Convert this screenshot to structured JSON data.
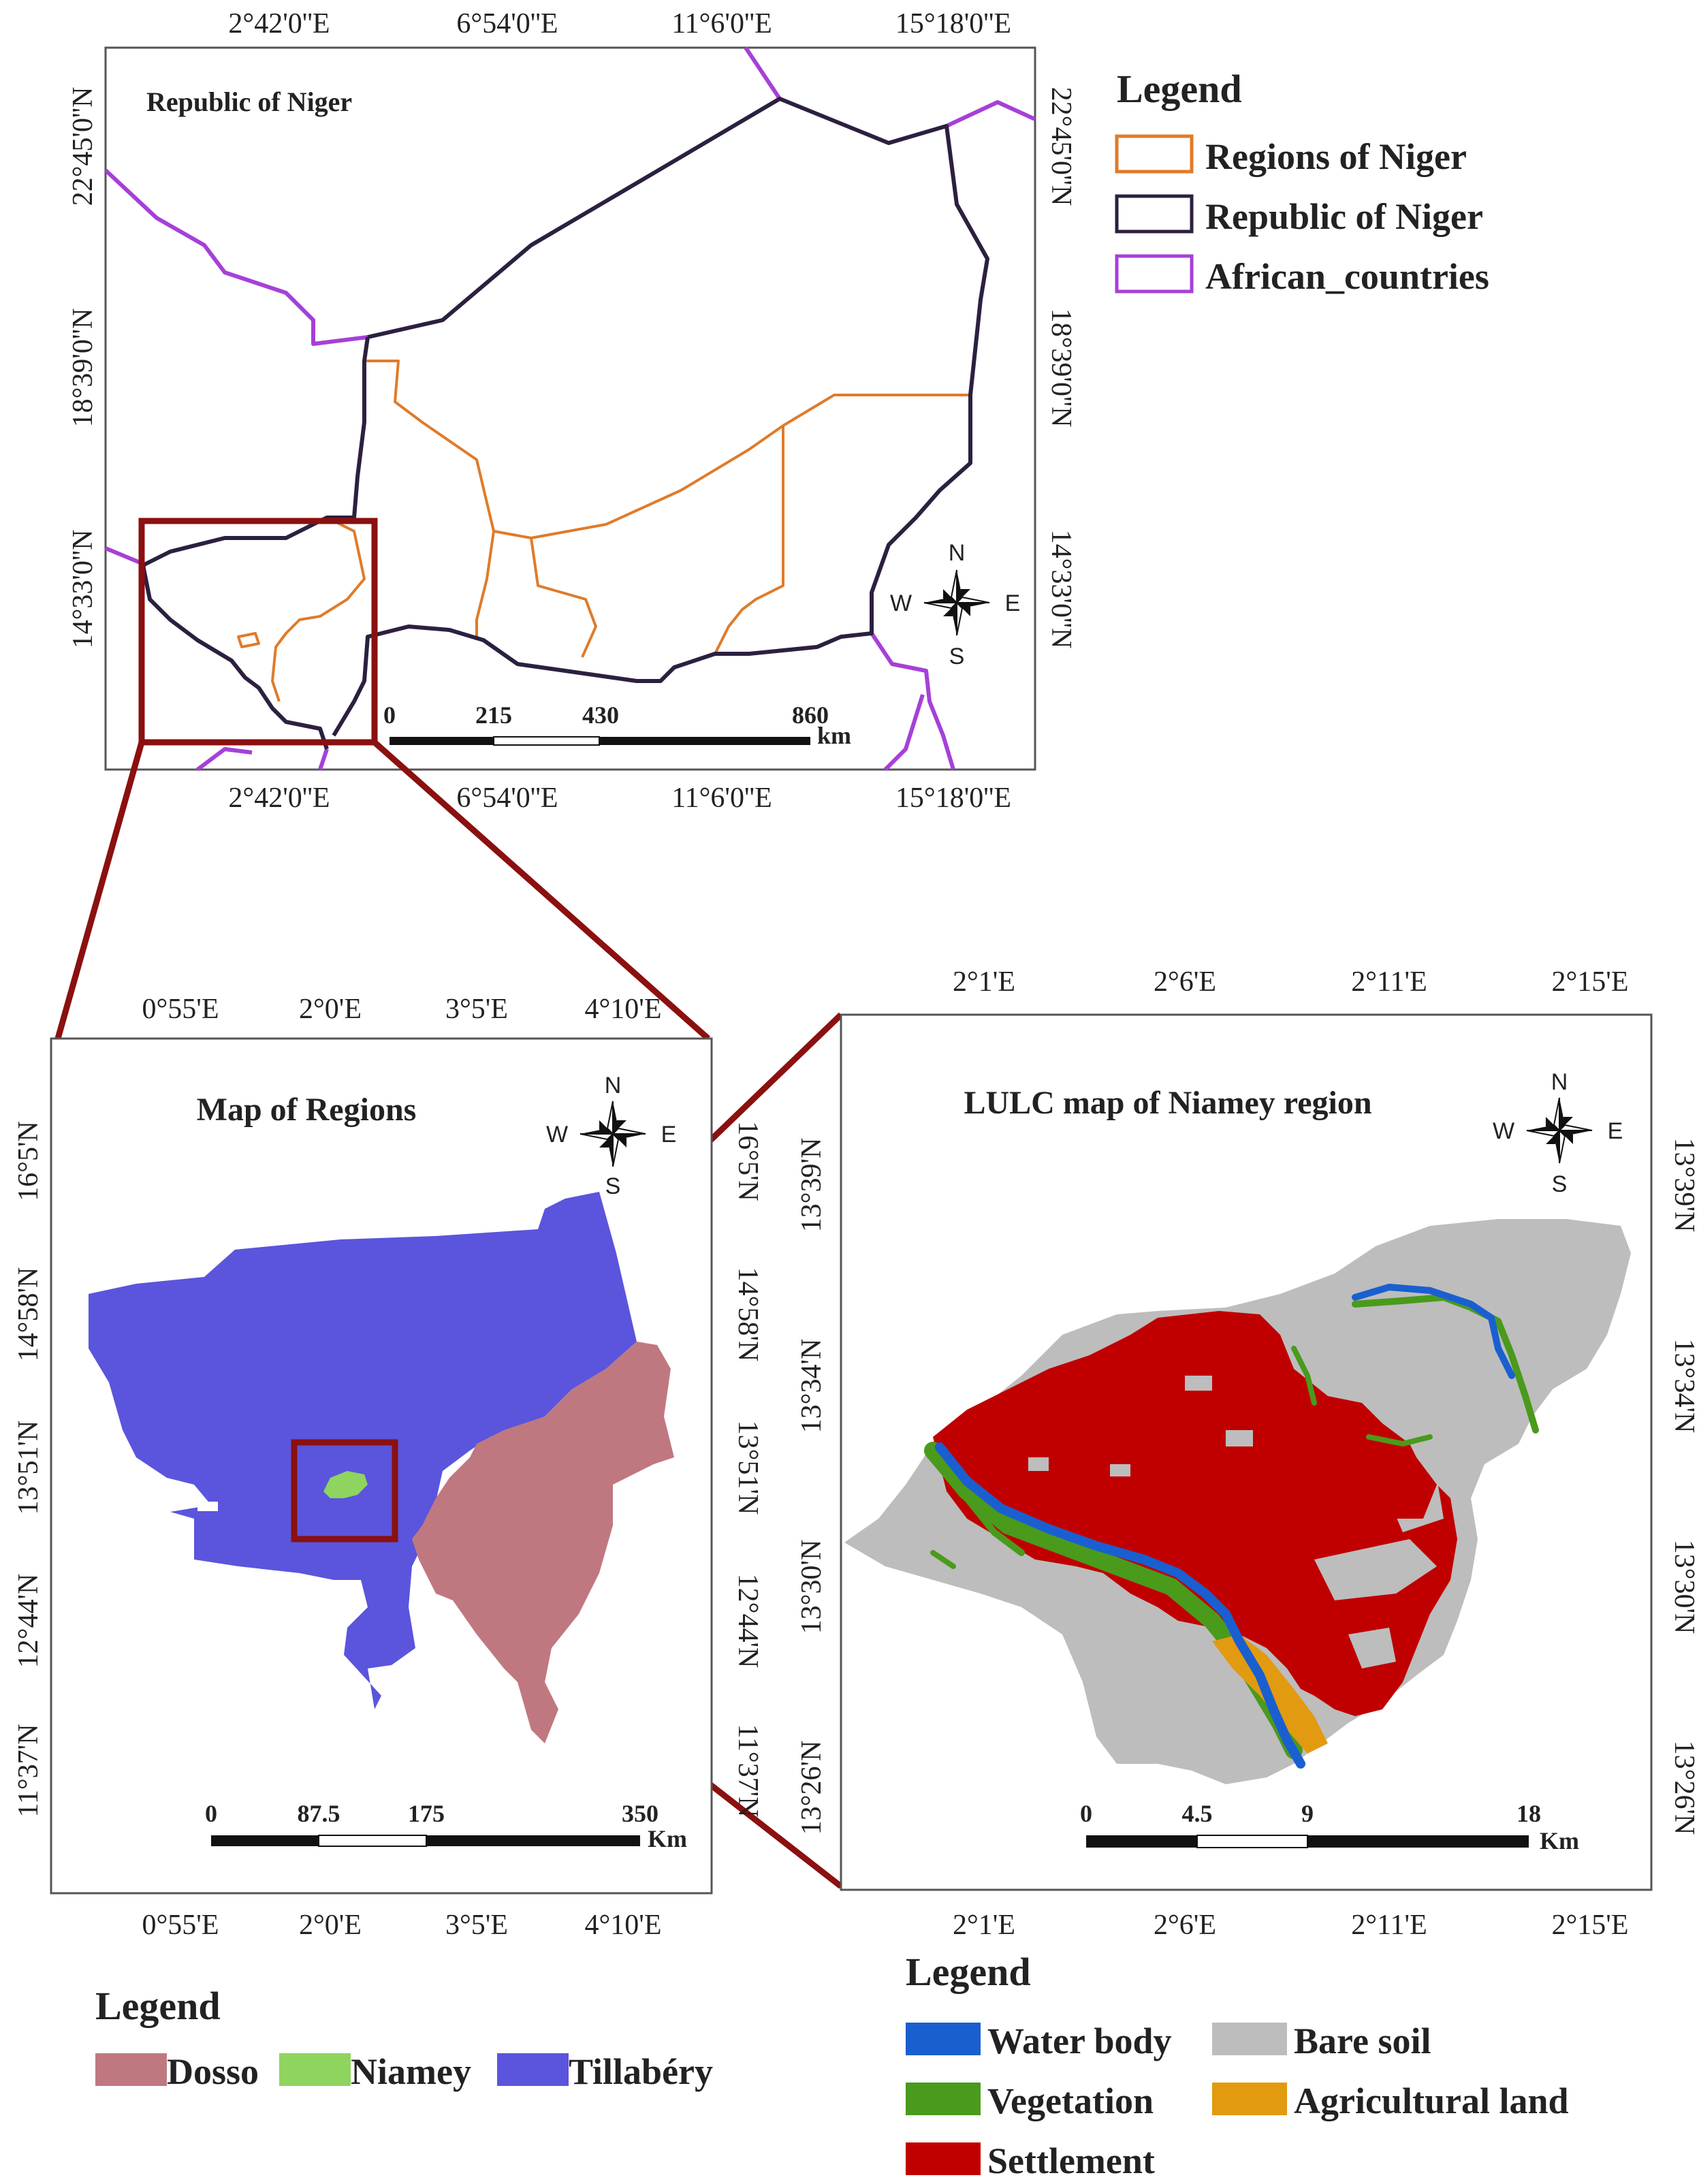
{
  "top_map": {
    "label": "Republic of Niger",
    "x_ticks": [
      "2°42'0''E",
      "6°54'0''E",
      "11°6'0''E",
      "15°18'0''E"
    ],
    "y_ticks": [
      "22°45'0''N",
      "18°39'0''N",
      "14°33'0''N"
    ],
    "scale": {
      "labels": [
        "0",
        "215",
        "430",
        "860"
      ],
      "unit": "km"
    },
    "compass": {
      "n": "N",
      "s": "S",
      "e": "E",
      "w": "W"
    }
  },
  "top_legend": {
    "title": "Legend",
    "items": [
      {
        "label": "Regions of Niger",
        "color": "#e07b2a"
      },
      {
        "label": "Republic of Niger",
        "color": "#2c2040"
      },
      {
        "label": "African_countries",
        "color": "#a640d8"
      }
    ]
  },
  "regions_map": {
    "title": "Map of Regions",
    "x_ticks": [
      "0°55'E",
      "2°0'E",
      "3°5'E",
      "4°10'E"
    ],
    "y_ticks": [
      "16°5'N",
      "14°58'N",
      "13°51'N",
      "12°44'N",
      "11°37'N"
    ],
    "scale": {
      "labels": [
        "0",
        "87.5",
        "175",
        "350"
      ],
      "unit": "Km"
    },
    "compass": {
      "n": "N",
      "s": "S",
      "e": "E",
      "w": "W"
    }
  },
  "regions_legend": {
    "title": "Legend",
    "items": [
      {
        "label": "Dosso",
        "color": "#c07880"
      },
      {
        "label": "Niamey",
        "color": "#8ed45e"
      },
      {
        "label": "Tillabéry",
        "color": "#5a55dc"
      }
    ]
  },
  "lulc_map": {
    "title": "LULC map of Niamey region",
    "x_ticks": [
      "2°1'E",
      "2°6'E",
      "2°11'E",
      "2°15'E"
    ],
    "y_ticks": [
      "13°39'N",
      "13°34'N",
      "13°30'N",
      "13°26'N"
    ],
    "scale": {
      "labels": [
        "0",
        "4.5",
        "9",
        "18"
      ],
      "unit": "Km"
    },
    "compass": {
      "n": "N",
      "s": "S",
      "e": "E",
      "w": "W"
    }
  },
  "lulc_legend": {
    "title": "Legend",
    "items": [
      {
        "label": "Water body",
        "color": "#1a5fd0"
      },
      {
        "label": "Bare soil",
        "color": "#bdbdbd"
      },
      {
        "label": "Vegetation",
        "color": "#4a9a1c"
      },
      {
        "label": "Agricultural land",
        "color": "#e29a10"
      },
      {
        "label": "Settlement",
        "color": "#c00000"
      }
    ]
  },
  "colors": {
    "frame": "#444444",
    "zoom_box": "#8b1010",
    "dosso": "#c07880",
    "niamey": "#8ed45e",
    "tillabery": "#5a55dc",
    "bare_soil": "#bdbdbd",
    "settlement": "#c00000",
    "water": "#1a5fd0",
    "vegetation": "#4a9a1c",
    "agriculture": "#e29a10"
  }
}
